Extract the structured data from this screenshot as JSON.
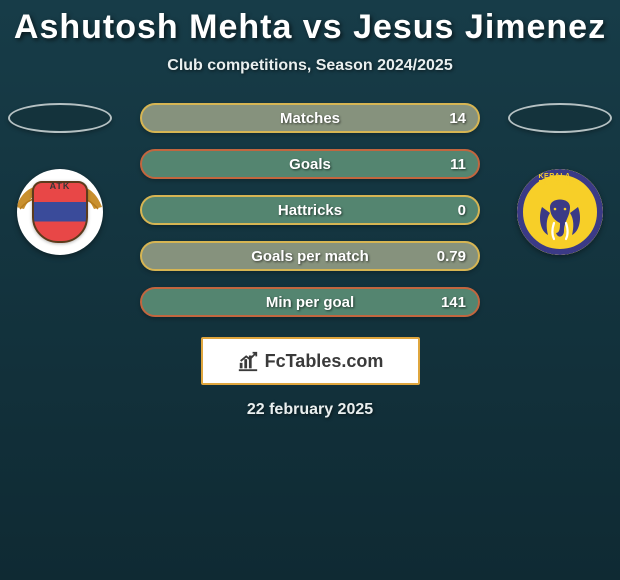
{
  "title": "Ashutosh Mehta vs Jesus Jimenez",
  "subtitle": "Club competitions, Season 2024/2025",
  "date": "22 february 2025",
  "background": {
    "top": "#173c48",
    "bottom": "#0f2a33"
  },
  "left_team": {
    "name": "ATK",
    "flag_bg": "#14333c"
  },
  "right_team": {
    "name": "Kerala Blasters",
    "primary_color": "#f7cf28",
    "ring_color": "#3b3a86",
    "flag_bg": "#14333c"
  },
  "stat_bars": [
    {
      "label": "Matches",
      "left": "",
      "right": "14",
      "border": "#d6b553",
      "bg": "#86927d"
    },
    {
      "label": "Goals",
      "left": "",
      "right": "11",
      "border": "#c2663f",
      "bg": "#548570"
    },
    {
      "label": "Hattricks",
      "left": "",
      "right": "0",
      "border": "#d6b553",
      "bg": "#548570"
    },
    {
      "label": "Goals per match",
      "left": "",
      "right": "0.79",
      "border": "#d6b553",
      "bg": "#86927d"
    },
    {
      "label": "Min per goal",
      "left": "",
      "right": "141",
      "border": "#c2663f",
      "bg": "#548570"
    }
  ],
  "brand": {
    "text": "FcTables.com"
  }
}
